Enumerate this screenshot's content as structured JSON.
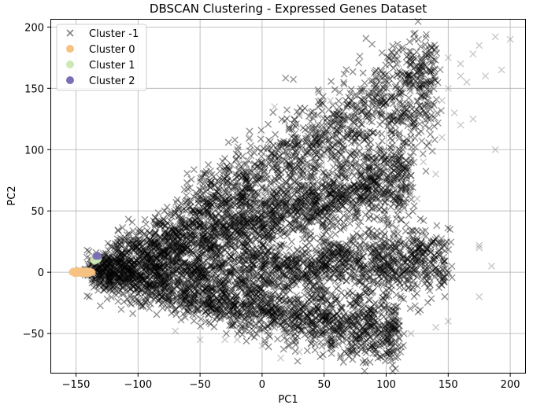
{
  "chart_data": {
    "type": "scatter",
    "title": "DBSCAN Clustering - Expressed Genes Dataset",
    "xlabel": "PC1",
    "ylabel": "PC2",
    "xlim": [
      -170,
      212
    ],
    "ylim": [
      -82,
      206
    ],
    "xticks": [
      -150,
      -100,
      -50,
      0,
      50,
      100,
      150,
      200
    ],
    "yticks": [
      -50,
      0,
      50,
      100,
      150,
      200
    ],
    "xtick_labels": [
      "−150",
      "−100",
      "−50",
      "0",
      "50",
      "100",
      "150",
      "200"
    ],
    "ytick_labels": [
      "−50",
      "0",
      "50",
      "100",
      "150",
      "200"
    ],
    "grid": true,
    "legend_position": "top-left",
    "series": [
      {
        "name": "Cluster -1",
        "marker": "x",
        "color": "#808080",
        "shape_note": "dense point cloud in four lobes fanning out from approx (-140, 0)",
        "lobes": [
          {
            "from": [
              -140,
              0
            ],
            "to": [
              -70,
              50
            ],
            "xend": 140,
            "y_at_end": 160,
            "spread": 18
          },
          {
            "from": [
              -140,
              0
            ],
            "to": [
              0,
              40
            ],
            "xend": 120,
            "y_at_end": 80,
            "spread": 10
          },
          {
            "from": [
              -140,
              0
            ],
            "to": [
              0,
              0
            ],
            "xend": 150,
            "y_at_end": 10,
            "spread": 10
          },
          {
            "from": [
              -140,
              -5
            ],
            "to": [
              -50,
              -40
            ],
            "xend": 110,
            "y_at_end": -50,
            "spread": 10
          }
        ],
        "outliers": [
          [
            150,
            175
          ],
          [
            175,
            185
          ],
          [
            188,
            192
          ],
          [
            200,
            190
          ],
          [
            193,
            165
          ],
          [
            188,
            100
          ],
          [
            160,
            160
          ],
          [
            165,
            155
          ],
          [
            145,
            140
          ],
          [
            160,
            120
          ],
          [
            170,
            125
          ],
          [
            120,
            95
          ],
          [
            100,
            90
          ],
          [
            95,
            85
          ],
          [
            130,
            90
          ],
          [
            140,
            80
          ],
          [
            110,
            65
          ],
          [
            125,
            60
          ],
          [
            100,
            40
          ],
          [
            130,
            30
          ],
          [
            175,
            20
          ],
          [
            175,
            22
          ],
          [
            185,
            5
          ],
          [
            175,
            -20
          ],
          [
            150,
            -40
          ],
          [
            140,
            -45
          ],
          [
            120,
            -50
          ],
          [
            90,
            -55
          ],
          [
            15,
            -70
          ],
          [
            0,
            -60
          ],
          [
            -30,
            -55
          ],
          [
            -50,
            -55
          ],
          [
            -70,
            -48
          ],
          [
            -50,
            -20
          ],
          [
            -20,
            -55
          ],
          [
            30,
            -65
          ],
          [
            145,
            110
          ],
          [
            150,
            150
          ],
          [
            155,
            130
          ],
          [
            160,
            170
          ],
          [
            170,
            178
          ],
          [
            120,
            165
          ],
          [
            110,
            170
          ],
          [
            180,
            160
          ],
          [
            105,
            145
          ],
          [
            -10,
            110
          ],
          [
            -20,
            100
          ],
          [
            10,
            135
          ],
          [
            30,
            130
          ],
          [
            55,
            140
          ],
          [
            70,
            125
          ],
          [
            60,
            105
          ],
          [
            50,
            95
          ],
          [
            40,
            115
          ]
        ]
      },
      {
        "name": "Cluster 0",
        "marker": "o",
        "color": "#f6c282",
        "points": [
          [
            -152,
            1
          ],
          [
            -150,
            0
          ],
          [
            -149,
            -1
          ],
          [
            -148,
            1
          ],
          [
            -147,
            0
          ],
          [
            -146,
            -1
          ],
          [
            -145,
            1
          ],
          [
            -144,
            0
          ],
          [
            -143,
            -1
          ],
          [
            -142,
            0
          ],
          [
            -141,
            1
          ],
          [
            -140,
            0
          ],
          [
            -139,
            -1
          ],
          [
            -138,
            0
          ],
          [
            -151,
            -1
          ],
          [
            -147,
            1
          ],
          [
            -144,
            -1
          ],
          [
            -141,
            -1
          ],
          [
            -153,
            0
          ],
          [
            -149,
            1
          ],
          [
            -146,
            1
          ],
          [
            -142,
            1
          ],
          [
            -139,
            1
          ],
          [
            -137,
            0
          ]
        ]
      },
      {
        "name": "Cluster 1",
        "marker": "o",
        "color": "#cde8b4",
        "points": [
          [
            -134,
            11
          ],
          [
            -135,
            12
          ],
          [
            -133,
            13
          ],
          [
            -134,
            14
          ],
          [
            -136,
            10
          ],
          [
            -132,
            11
          ],
          [
            -135,
            9
          ],
          [
            -133,
            10
          ]
        ]
      },
      {
        "name": "Cluster 2",
        "marker": "o",
        "color": "#7a6fb3",
        "points": [
          [
            -133,
            14
          ],
          [
            -132,
            13
          ],
          [
            -134,
            13
          ]
        ]
      }
    ]
  }
}
